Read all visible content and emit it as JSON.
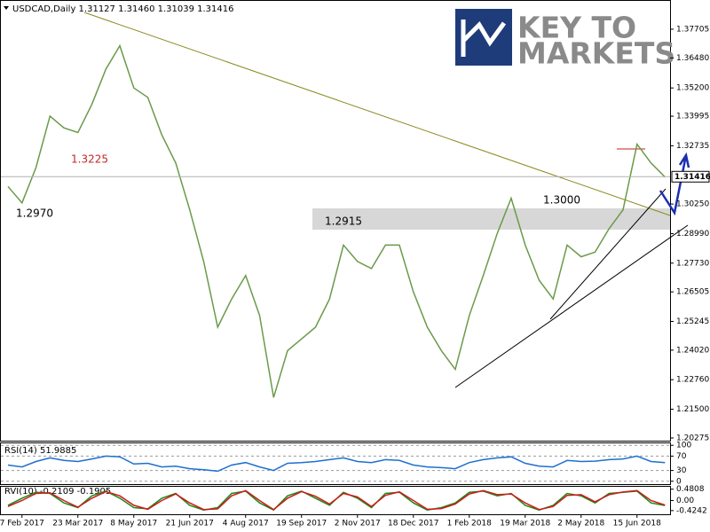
{
  "logo": [
    "KEY TO",
    "MARKETS"
  ],
  "chart_data": [
    {
      "type": "line",
      "title": "USDCAD,Daily  1.31127 1.31460 1.31039 1.31416",
      "categories": [
        null,
        "7 Feb 2017",
        null,
        null,
        null,
        "23 Mar 2017",
        null,
        null,
        null,
        "8 May 2017",
        null,
        null,
        null,
        "21 Jun 2017",
        null,
        null,
        null,
        "4 Aug 2017",
        null,
        null,
        null,
        "19 Sep 2017",
        null,
        null,
        null,
        "2 Nov 2017",
        null,
        null,
        null,
        "18 Dec 2017",
        null,
        null,
        null,
        "1 Feb 2018",
        null,
        null,
        null,
        "19 Mar 2018",
        null,
        null,
        null,
        "2 May 2018",
        null,
        null,
        null,
        "15 Jun 2018",
        null,
        null
      ],
      "values": [
        1.31,
        1.303,
        1.318,
        1.34,
        1.335,
        1.333,
        1.345,
        1.36,
        1.37,
        1.352,
        1.348,
        1.332,
        1.32,
        1.3,
        1.278,
        1.25,
        1.262,
        1.272,
        1.255,
        1.22,
        1.24,
        1.245,
        1.25,
        1.262,
        1.285,
        1.278,
        1.275,
        1.285,
        1.285,
        1.265,
        1.25,
        1.24,
        1.232,
        1.255,
        1.272,
        1.29,
        1.305,
        1.285,
        1.27,
        1.262,
        1.285,
        1.28,
        1.282,
        1.292,
        1.3,
        1.328,
        1.32,
        1.314
      ],
      "color": "#6a9a4a",
      "last_price": {
        "value": 1.31416,
        "label": "1.31416"
      },
      "annotations": [
        "1.3225",
        "1.2970",
        "1.2915",
        "1.3000"
      ],
      "ylim": [
        1.2016,
        1.3895
      ],
      "yticks": [
        1.37705,
        {
          "value": 1.3648,
          "label": "1.36480"
        },
        {
          "value": 1.352,
          "label": "1.35200"
        },
        1.33995,
        1.32735,
        {
          "value": 1.3025,
          "label": "1.30250"
        },
        {
          "value": 1.2899,
          "label": "1.28990"
        },
        {
          "value": 1.2773,
          "label": "1.27730"
        },
        1.26505,
        1.25245,
        {
          "value": 1.2402,
          "label": "1.24020"
        },
        {
          "value": 1.2276,
          "label": "1.22760"
        },
        {
          "value": 1.215,
          "label": "1.21500"
        },
        1.20275
      ]
    },
    {
      "type": "line",
      "title": "RSI(14) 51.9885",
      "values": [
        45,
        40,
        55,
        65,
        58,
        55,
        62,
        70,
        68,
        48,
        50,
        40,
        42,
        35,
        32,
        28,
        45,
        52,
        40,
        30,
        50,
        52,
        55,
        60,
        65,
        55,
        52,
        60,
        58,
        45,
        40,
        38,
        35,
        52,
        60,
        65,
        68,
        50,
        42,
        40,
        58,
        55,
        56,
        60,
        62,
        70,
        55,
        52
      ],
      "color": "#1e6fd0",
      "ylim": [
        -8,
        108
      ],
      "yticks": [
        100,
        70,
        30,
        0
      ]
    },
    {
      "type": "line",
      "title": "RVI(10) -0.2109 -0.1905",
      "series": [
        {
          "color": "#1a8a1a",
          "values": [
            -0.2,
            0.1,
            0.35,
            0.3,
            -0.1,
            -0.3,
            0.2,
            0.4,
            0.1,
            -0.3,
            -0.35,
            0.1,
            0.3,
            -0.2,
            -0.4,
            -0.3,
            0.3,
            0.4,
            -0.1,
            -0.4,
            0.2,
            0.4,
            0.1,
            -0.2,
            0.35,
            0.1,
            -0.3,
            0.3,
            0.35,
            -0.1,
            -0.4,
            -0.3,
            -0.1,
            0.35,
            0.4,
            0.2,
            0.3,
            -0.2,
            -0.4,
            -0.2,
            0.3,
            0.2,
            -0.1,
            0.3,
            0.35,
            0.4,
            -0.1,
            -0.21
          ]
        },
        {
          "color": "#d01a1a",
          "values": [
            -0.25,
            0.0,
            0.3,
            0.33,
            0.0,
            -0.28,
            0.1,
            0.38,
            0.2,
            -0.2,
            -0.37,
            0.0,
            0.28,
            -0.1,
            -0.38,
            -0.35,
            0.2,
            0.42,
            0.0,
            -0.38,
            0.1,
            0.38,
            0.18,
            -0.15,
            0.3,
            0.15,
            -0.25,
            0.22,
            0.37,
            0.0,
            -0.37,
            -0.34,
            -0.15,
            0.28,
            0.42,
            0.25,
            0.28,
            -0.1,
            -0.38,
            -0.25,
            0.22,
            0.25,
            -0.05,
            0.25,
            0.36,
            0.42,
            0.0,
            -0.19
          ]
        }
      ],
      "ylim": [
        -0.58,
        0.62
      ],
      "yticks": [
        0.4808,
        {
          "value": 0,
          "label": "0.00"
        },
        -0.4242
      ]
    }
  ]
}
